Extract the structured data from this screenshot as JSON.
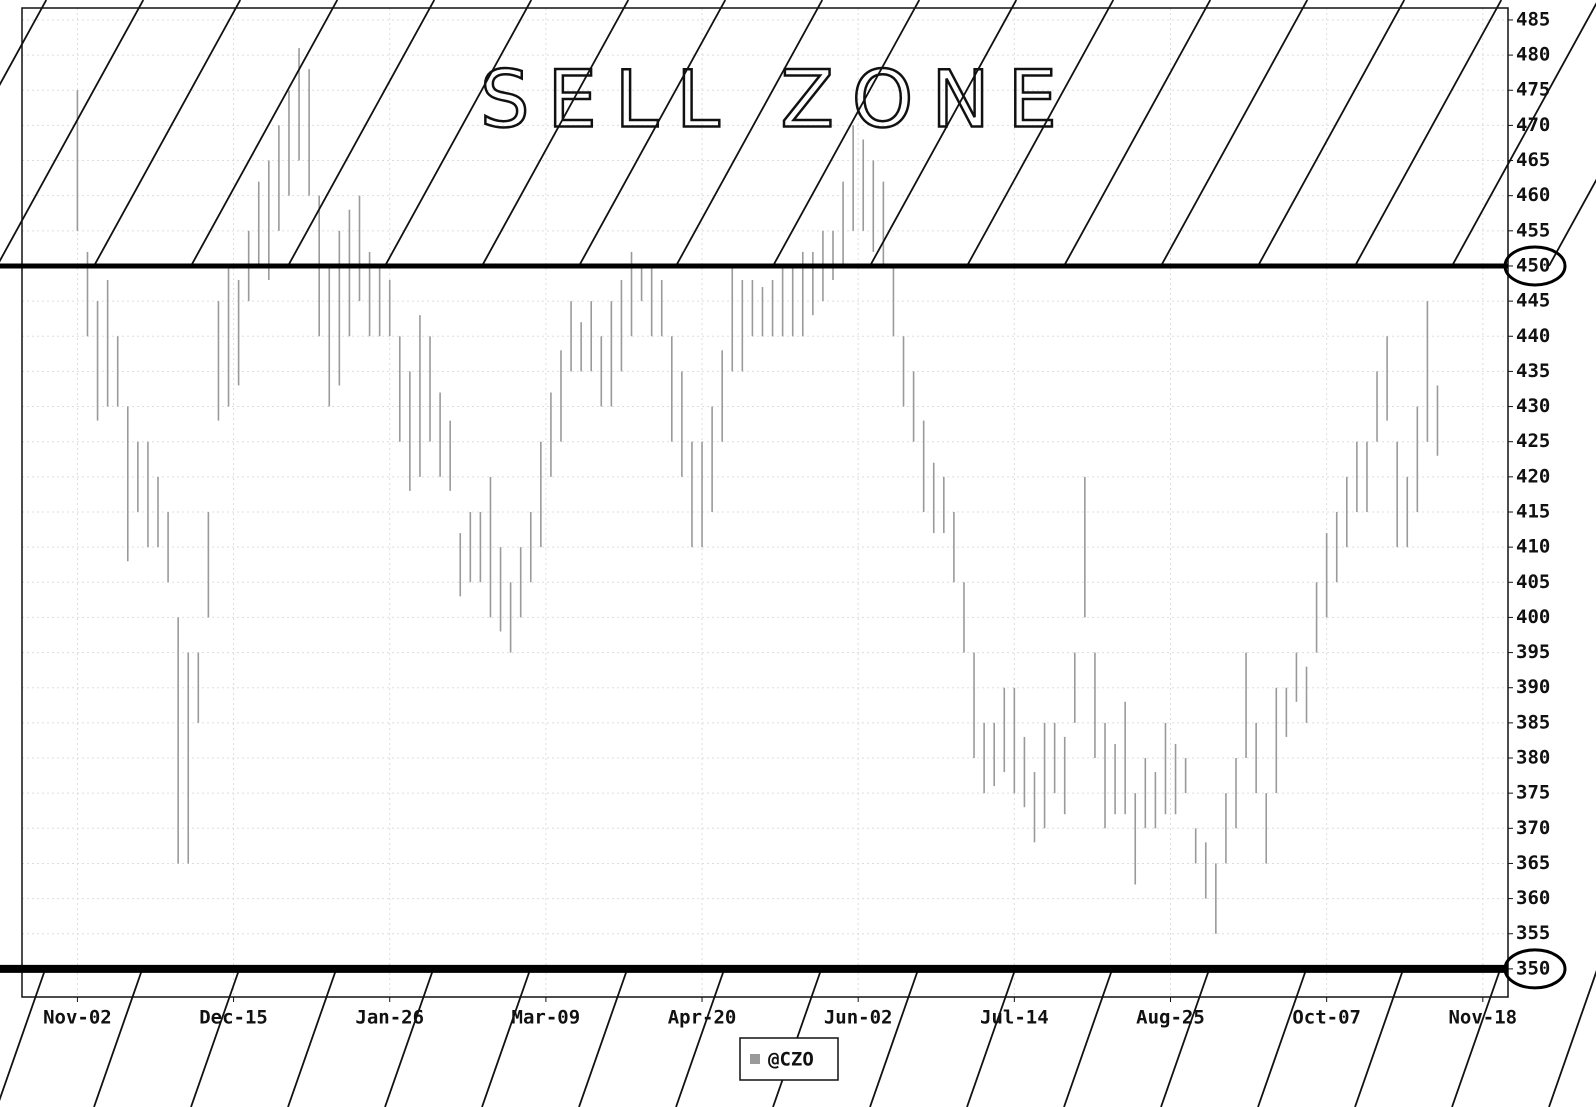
{
  "chart_data": {
    "type": "ohlc",
    "annotation": "SELL ZONE",
    "grid": true,
    "xlim": [
      -11,
      284
    ],
    "xticks": [
      {
        "value": 0,
        "label": "Nov-02"
      },
      {
        "value": 31,
        "label": "Dec-15"
      },
      {
        "value": 62,
        "label": "Jan-26"
      },
      {
        "value": 93,
        "label": "Mar-09"
      },
      {
        "value": 124,
        "label": "Apr-20"
      },
      {
        "value": 155,
        "label": "Jun-02"
      },
      {
        "value": 186,
        "label": "Jul-14"
      },
      {
        "value": 217,
        "label": "Aug-25"
      },
      {
        "value": 248,
        "label": "Oct-07"
      },
      {
        "value": 279,
        "label": "Nov-18"
      }
    ],
    "ylim": [
      346,
      486.7
    ],
    "yticks": [
      350,
      355,
      360,
      365,
      370,
      375,
      380,
      385,
      390,
      395,
      400,
      405,
      410,
      415,
      420,
      425,
      430,
      435,
      440,
      445,
      450,
      455,
      460,
      465,
      470,
      475,
      480,
      485
    ],
    "hlines": [
      450,
      350
    ],
    "series": [
      {
        "name": "@CZO",
        "color": "#9a9a9a",
        "x": [
          0,
          2,
          4,
          6,
          8,
          10,
          12,
          14,
          16,
          18,
          20,
          22,
          24,
          26,
          28,
          30,
          32,
          34,
          36,
          38,
          40,
          42,
          44,
          46,
          48,
          50,
          52,
          54,
          56,
          58,
          60,
          62,
          64,
          66,
          68,
          70,
          72,
          74,
          76,
          78,
          80,
          82,
          84,
          86,
          88,
          90,
          92,
          94,
          96,
          98,
          100,
          102,
          104,
          106,
          108,
          110,
          112,
          114,
          116,
          118,
          120,
          122,
          124,
          126,
          128,
          130,
          132,
          134,
          136,
          138,
          140,
          142,
          144,
          146,
          148,
          150,
          152,
          154,
          156,
          158,
          160,
          162,
          164,
          166,
          168,
          170,
          172,
          174,
          176,
          178,
          180,
          182,
          184,
          186,
          188,
          190,
          192,
          194,
          196,
          198,
          200,
          202,
          204,
          206,
          208,
          210,
          212,
          214,
          216,
          218,
          220,
          222,
          224,
          226,
          228,
          230,
          232,
          234,
          236,
          238,
          240,
          242,
          244,
          246,
          248,
          250,
          252,
          254,
          256,
          258,
          260,
          262,
          264,
          266,
          268,
          270
        ],
        "high": [
          475,
          452,
          445,
          448,
          440,
          430,
          425,
          425,
          420,
          415,
          400,
          395,
          395,
          415,
          445,
          450,
          448,
          455,
          462,
          465,
          470,
          475,
          481,
          478,
          460,
          450,
          455,
          458,
          460,
          452,
          450,
          448,
          440,
          435,
          443,
          440,
          432,
          428,
          412,
          415,
          415,
          420,
          410,
          405,
          410,
          415,
          425,
          432,
          438,
          445,
          442,
          445,
          440,
          445,
          448,
          452,
          450,
          450,
          448,
          440,
          435,
          425,
          425,
          430,
          438,
          450,
          448,
          448,
          447,
          448,
          450,
          450,
          452,
          452,
          455,
          455,
          462,
          470,
          468,
          465,
          462,
          450,
          440,
          435,
          428,
          422,
          420,
          415,
          405,
          395,
          385,
          385,
          390,
          390,
          383,
          378,
          385,
          385,
          383,
          395,
          420,
          395,
          385,
          382,
          388,
          375,
          380,
          378,
          385,
          382,
          380,
          370,
          368,
          365,
          375,
          380,
          395,
          385,
          375,
          390,
          390,
          395,
          393,
          405,
          412,
          415,
          420,
          425,
          425,
          435,
          440,
          425,
          420,
          430,
          445,
          433
        ],
        "low": [
          455,
          440,
          428,
          430,
          430,
          408,
          415,
          410,
          410,
          405,
          365,
          365,
          385,
          400,
          428,
          430,
          433,
          445,
          450,
          448,
          455,
          460,
          465,
          460,
          440,
          430,
          433,
          440,
          445,
          440,
          440,
          440,
          425,
          418,
          420,
          425,
          420,
          418,
          403,
          405,
          405,
          400,
          398,
          395,
          400,
          405,
          410,
          420,
          425,
          435,
          435,
          435,
          430,
          430,
          435,
          440,
          445,
          440,
          440,
          425,
          420,
          410,
          410,
          415,
          425,
          435,
          435,
          440,
          440,
          440,
          440,
          440,
          440,
          443,
          445,
          448,
          450,
          455,
          455,
          452,
          450,
          440,
          430,
          425,
          415,
          412,
          412,
          405,
          395,
          380,
          375,
          376,
          378,
          375,
          373,
          368,
          370,
          375,
          372,
          385,
          400,
          380,
          370,
          372,
          372,
          362,
          370,
          370,
          372,
          372,
          375,
          365,
          360,
          355,
          365,
          370,
          380,
          375,
          365,
          375,
          383,
          388,
          385,
          395,
          400,
          405,
          410,
          415,
          415,
          425,
          428,
          410,
          410,
          415,
          425,
          423
        ]
      }
    ]
  }
}
